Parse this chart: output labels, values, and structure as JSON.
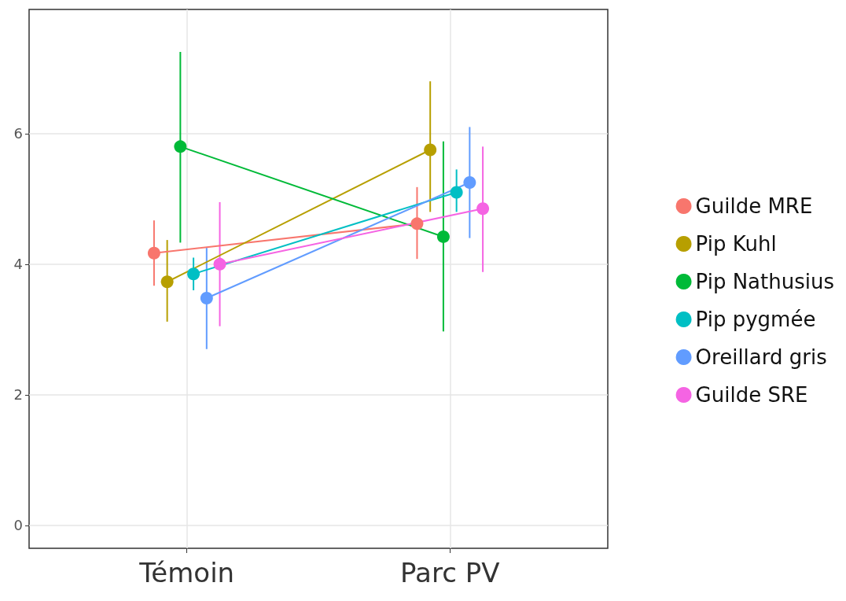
{
  "chart_data": {
    "type": "line",
    "categories": [
      "Témoin",
      "Parc PV"
    ],
    "ylim": [
      -0.35,
      7.9
    ],
    "yticks": [
      0,
      2,
      4,
      6
    ],
    "grid": true,
    "legend": "right",
    "marker": "circle",
    "line_style": "solid",
    "series": [
      {
        "name": "Guilde MRE",
        "color": "#f8766d",
        "values": [
          4.17,
          4.62
        ],
        "errors": [
          [
            3.67,
            4.67
          ],
          [
            4.08,
            5.18
          ]
        ]
      },
      {
        "name": "Pip Kuhl",
        "color": "#b79f00",
        "values": [
          3.73,
          5.75
        ],
        "errors": [
          [
            3.12,
            4.37
          ],
          [
            4.8,
            6.8
          ]
        ]
      },
      {
        "name": "Pip Nathusius",
        "color": "#00ba38",
        "values": [
          5.8,
          4.42
        ],
        "errors": [
          [
            4.33,
            7.25
          ],
          [
            2.97,
            5.88
          ]
        ]
      },
      {
        "name": "Pip pygmée",
        "color": "#00bfc4",
        "values": [
          3.85,
          5.1
        ],
        "errors": [
          [
            3.6,
            4.1
          ],
          [
            4.8,
            5.45
          ]
        ]
      },
      {
        "name": "Oreillard gris",
        "color": "#619cff",
        "values": [
          3.48,
          5.25
        ],
        "errors": [
          [
            2.7,
            4.25
          ],
          [
            4.4,
            6.1
          ]
        ]
      },
      {
        "name": "Guilde SRE",
        "color": "#f564e3",
        "values": [
          4.0,
          4.85
        ],
        "errors": [
          [
            3.05,
            4.95
          ],
          [
            3.88,
            5.8
          ]
        ]
      }
    ]
  }
}
